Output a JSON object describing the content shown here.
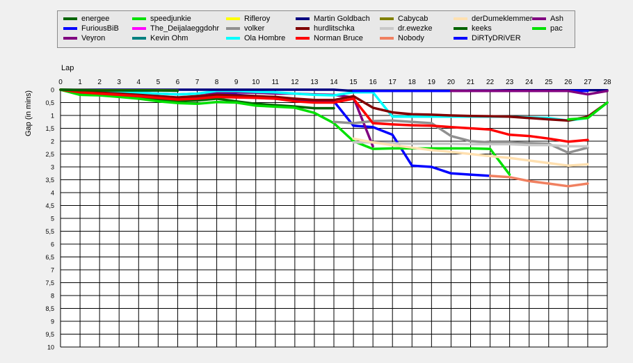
{
  "chart_data": {
    "type": "line",
    "xlabel": "Lap",
    "ylabel": "Gap (in mins)",
    "x_ticks": [
      "0",
      "1",
      "2",
      "3",
      "4",
      "5",
      "6",
      "7",
      "8",
      "9",
      "10",
      "11",
      "12",
      "13",
      "14",
      "15",
      "16",
      "17",
      "18",
      "19",
      "20",
      "21",
      "22",
      "23",
      "24",
      "25",
      "26",
      "27",
      "28"
    ],
    "y_ticks": [
      "0",
      "0,5",
      "1",
      "1,5",
      "2",
      "2,5",
      "3",
      "3,5",
      "4",
      "4,5",
      "5",
      "5,5",
      "6",
      "6,5",
      "7",
      "7,5",
      "8",
      "8,5",
      "9",
      "9,5",
      "10"
    ],
    "xlim": [
      0,
      28
    ],
    "ylim": [
      0,
      10
    ],
    "y_inverted": true,
    "grid": true,
    "legend_position": "top",
    "series": [
      {
        "name": "energee",
        "color": "#006400",
        "x": [
          0,
          1,
          2,
          3,
          4,
          5,
          6,
          7,
          8,
          9,
          10,
          11,
          12,
          13,
          14
        ],
        "y": [
          0,
          0.15,
          0.2,
          0.25,
          0.3,
          0.38,
          0.45,
          0.42,
          0.35,
          0.45,
          0.55,
          0.6,
          0.65,
          0.72,
          0.72
        ]
      },
      {
        "name": "FuriousBiB",
        "color": "#0000ff",
        "x": [
          0,
          1,
          2,
          3,
          4,
          5,
          6,
          7,
          8,
          9,
          10,
          11,
          12,
          13,
          14,
          15,
          16,
          17,
          18,
          19,
          20,
          21,
          22
        ],
        "y": [
          0,
          0.1,
          0.15,
          0.2,
          0.25,
          0.3,
          0.35,
          0.3,
          0.15,
          0.2,
          0.25,
          0.35,
          0.4,
          0.45,
          0.45,
          1.4,
          1.45,
          1.75,
          2.95,
          3,
          3.25,
          3.3,
          3.35
        ]
      },
      {
        "name": "Veyron",
        "color": "#800080",
        "x": [
          0,
          1,
          2,
          3,
          4,
          5,
          6,
          7,
          8,
          9,
          10,
          11,
          12,
          13,
          14,
          15,
          16
        ],
        "y": [
          0,
          0.05,
          0.08,
          0.1,
          0.12,
          0.15,
          0.18,
          0.15,
          0.1,
          0.1,
          0.12,
          0.15,
          0.15,
          0.18,
          0.2,
          0.3,
          2.2
        ]
      },
      {
        "name": "speedjunkie",
        "color": "#00e000",
        "x": [
          0,
          1,
          2,
          3,
          4,
          5,
          6,
          7,
          8,
          9,
          10,
          11,
          12,
          13,
          14,
          15,
          16,
          17,
          18,
          19,
          20,
          21,
          22,
          23
        ],
        "y": [
          0,
          0.2,
          0.22,
          0.28,
          0.35,
          0.45,
          0.52,
          0.55,
          0.48,
          0.5,
          0.62,
          0.66,
          0.7,
          0.9,
          1.3,
          2,
          2.3,
          2.28,
          2.28,
          2.28,
          2.28,
          2.28,
          2.3,
          3.3
        ]
      },
      {
        "name": "The_Deijalaeggdohr",
        "color": "#ff00ff",
        "x": [
          0,
          1,
          2,
          3,
          4,
          5
        ],
        "y": [
          0,
          0.02,
          0.03,
          0.03,
          0.03,
          0.03
        ]
      },
      {
        "name": "Kevin Ohm",
        "color": "#008080",
        "x": [
          0,
          1,
          2,
          3,
          4,
          5,
          6
        ],
        "y": [
          0,
          0.01,
          0.01,
          0.01,
          0.02,
          0.02,
          0.02
        ]
      },
      {
        "name": "Rifleroy",
        "color": "#ffff00",
        "x": [
          0,
          1,
          2,
          3,
          4
        ],
        "y": [
          0,
          0.01,
          0.01,
          0.01,
          0.01
        ]
      },
      {
        "name": "volker",
        "color": "#909090",
        "x": [
          14,
          15,
          16,
          17,
          18,
          19,
          20,
          21,
          22,
          23,
          24,
          25,
          26,
          27
        ],
        "y": [
          1.25,
          1.3,
          1.22,
          1.2,
          1.25,
          1.3,
          1.8,
          2,
          2.05,
          2.05,
          2.08,
          2.1,
          2.45,
          2.25
        ]
      },
      {
        "name": "Ola Hombre",
        "color": "#00ffff",
        "x": [
          0,
          1,
          2,
          3,
          4,
          5,
          6,
          7,
          8,
          9,
          10,
          11,
          12,
          13,
          14,
          15,
          16,
          17,
          18,
          19,
          20,
          21,
          22,
          23,
          24,
          25,
          26,
          27,
          28
        ],
        "y": [
          0,
          0.05,
          0.08,
          0.1,
          0.12,
          0.15,
          0.18,
          0.15,
          0.05,
          0.05,
          0.08,
          0.1,
          0.15,
          0.2,
          0.22,
          0.1,
          0.1,
          1.05,
          1.05,
          1.05,
          1.05,
          1.05,
          1.05,
          1.05,
          1.08,
          1.1,
          1.2,
          1.1,
          0.5
        ]
      },
      {
        "name": "Martin Goldbach",
        "color": "#000080",
        "x": [
          0,
          1,
          2,
          3,
          4,
          5,
          6,
          7,
          8,
          9,
          10,
          11,
          12,
          13,
          14,
          15,
          16,
          17,
          18,
          19,
          20,
          21,
          22,
          23,
          24,
          25,
          26,
          27,
          28
        ],
        "y": [
          0,
          0,
          0,
          0,
          0,
          0,
          0,
          0,
          0,
          0,
          0,
          0,
          0,
          0,
          0,
          0.05,
          0.05,
          0.05,
          0.05,
          0.05,
          0.05,
          0.03,
          0.03,
          0.02,
          0.02,
          0.02,
          0.02,
          0.02,
          0.02
        ]
      },
      {
        "name": "hurdlitschka",
        "color": "#800000",
        "x": [
          0,
          1,
          2,
          3,
          4,
          5,
          6,
          7,
          8,
          9,
          10,
          11,
          12,
          13,
          14,
          15,
          16,
          17,
          18,
          19,
          20,
          21,
          22,
          23,
          24,
          25,
          26,
          27,
          28
        ],
        "y": [
          0,
          0.08,
          0.12,
          0.15,
          0.2,
          0.25,
          0.3,
          0.25,
          0.2,
          0.22,
          0.25,
          0.28,
          0.35,
          0.4,
          0.4,
          0.25,
          0.7,
          0.88,
          0.95,
          0.97,
          1,
          1.02,
          1.03,
          1.05,
          1.1,
          1.15,
          1.2,
          1.05,
          0.5
        ]
      },
      {
        "name": "Norman Bruce",
        "color": "#ff0000",
        "x": [
          0,
          1,
          2,
          3,
          4,
          5,
          6,
          7,
          8,
          9,
          10,
          11,
          12,
          13,
          14,
          15,
          16,
          17,
          18,
          19,
          20,
          21,
          22,
          23,
          24,
          25,
          26,
          27
        ],
        "y": [
          0,
          0.1,
          0.15,
          0.2,
          0.25,
          0.32,
          0.38,
          0.35,
          0.28,
          0.3,
          0.32,
          0.35,
          0.45,
          0.5,
          0.5,
          0.35,
          1.3,
          1.35,
          1.38,
          1.4,
          1.45,
          1.5,
          1.55,
          1.75,
          1.8,
          1.9,
          2.02,
          1.95
        ]
      },
      {
        "name": "Cabycab",
        "color": "#808000",
        "x": [
          0,
          1,
          2,
          3,
          4,
          5,
          6
        ],
        "y": [
          0,
          0.01,
          0.02,
          0.02,
          0.02,
          0.02,
          0.03
        ]
      },
      {
        "name": "dr.ewezke",
        "color": "#c8c8c8",
        "x": [
          15,
          16,
          17,
          18,
          19,
          20,
          21,
          22,
          23,
          24,
          25,
          26,
          27
        ],
        "y": [
          2.05,
          2.05,
          2.08,
          2.1,
          2.1,
          2.1,
          2.12,
          2.12,
          2.12,
          2.15,
          2.15,
          2.2,
          2.2
        ]
      },
      {
        "name": "Nobody",
        "color": "#f08060",
        "x": [
          22,
          23,
          24,
          25,
          26,
          27
        ],
        "y": [
          3.35,
          3.4,
          3.55,
          3.65,
          3.75,
          3.65
        ]
      },
      {
        "name": "derDumeklemmer",
        "color": "#ffe0b0",
        "x": [
          15,
          16,
          17,
          18,
          19,
          20,
          21,
          22,
          23,
          24,
          25,
          26,
          27
        ],
        "y": [
          1.9,
          2.05,
          2.15,
          2.25,
          2.35,
          2.42,
          2.5,
          2.58,
          2.65,
          2.75,
          2.85,
          2.95,
          2.9
        ]
      },
      {
        "name": "keeks",
        "color": "#006400",
        "x": [
          0,
          1,
          2,
          3,
          4,
          5,
          6
        ],
        "y": [
          0,
          0.02,
          0.03,
          0.03,
          0.03,
          0.03,
          0.04
        ]
      },
      {
        "name": "DiRTyDRiVER",
        "color": "#0000ff",
        "x": [
          15,
          16,
          17,
          18,
          19,
          20,
          21,
          22,
          23,
          24,
          25,
          26,
          27
        ],
        "y": [
          0.05,
          0.05,
          0.05,
          0.05,
          0.05,
          0.05,
          0.05,
          0.05,
          0.05,
          0.05,
          0.05,
          0.05,
          0.05
        ]
      },
      {
        "name": "Ash",
        "color": "#800080",
        "x": [
          20,
          21,
          22,
          23,
          24,
          25,
          26,
          27,
          28
        ],
        "y": [
          0.05,
          0.05,
          0.05,
          0.05,
          0.05,
          0.05,
          0.05,
          0.18,
          0.05
        ]
      },
      {
        "name": "pac",
        "color": "#00e000",
        "x": [
          26,
          27,
          28
        ],
        "y": [
          1.15,
          1.1,
          0.5
        ]
      }
    ]
  }
}
